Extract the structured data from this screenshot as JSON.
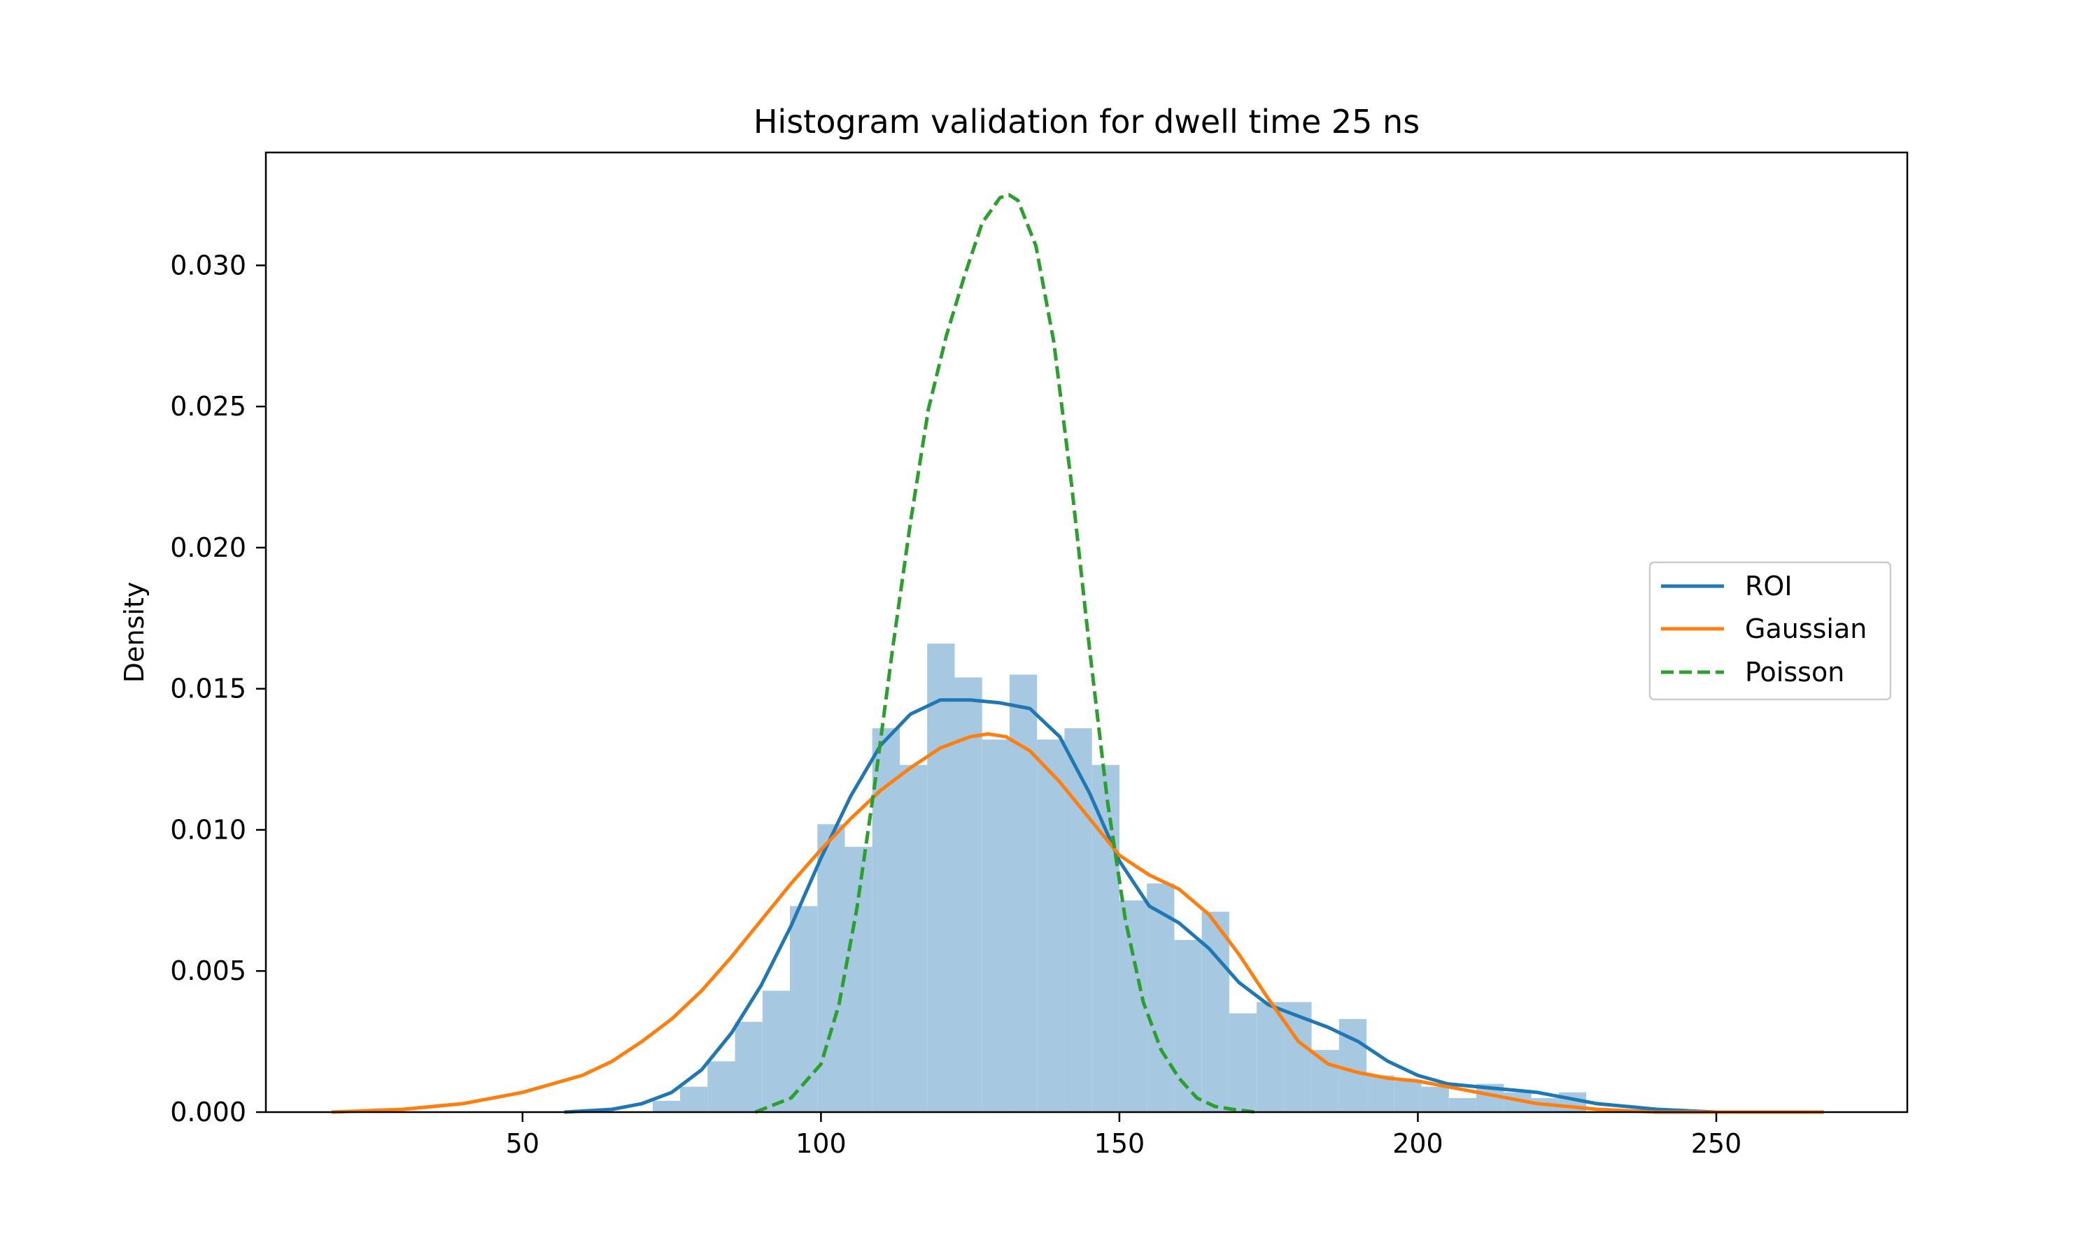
{
  "chart_data": {
    "type": "histogram",
    "title": "Histogram validation for dwell time 25 ns",
    "xlabel": "",
    "ylabel": "Density",
    "xlim": [
      7,
      282
    ],
    "ylim": [
      0,
      0.034
    ],
    "x_ticks": [
      50,
      100,
      150,
      200,
      250
    ],
    "y_ticks": [
      0.0,
      0.005,
      0.01,
      0.015,
      0.02,
      0.025,
      0.03
    ],
    "y_tick_labels": [
      "0.000",
      "0.005",
      "0.010",
      "0.015",
      "0.020",
      "0.025",
      "0.030"
    ],
    "grid": false,
    "legend_position": "center-right",
    "histogram": {
      "color": "#a6c8e0",
      "bin_edges": [
        71.8,
        76.4,
        81.0,
        85.6,
        90.2,
        94.8,
        99.4,
        104.0,
        108.6,
        113.2,
        117.8,
        122.4,
        127.0,
        131.6,
        136.2,
        140.8,
        145.4,
        150.0,
        154.6,
        159.2,
        163.8,
        168.4,
        173.0,
        177.6,
        182.2,
        186.8,
        191.4,
        196.0,
        200.6,
        205.2,
        209.8,
        214.4,
        219.0,
        223.6,
        228.2
      ],
      "densities": [
        0.0004,
        0.0009,
        0.0018,
        0.0032,
        0.0043,
        0.0073,
        0.0102,
        0.0094,
        0.0136,
        0.0123,
        0.0166,
        0.0154,
        0.0132,
        0.0155,
        0.0132,
        0.0136,
        0.0123,
        0.0075,
        0.0081,
        0.0061,
        0.0071,
        0.0035,
        0.0039,
        0.0039,
        0.0022,
        0.0033,
        0.0013,
        0.0011,
        0.0009,
        0.0005,
        0.001,
        0.0007,
        0.0005,
        0.0007
      ]
    },
    "series": [
      {
        "name": "ROI",
        "color": "#1f77b4",
        "style": "solid",
        "x": [
          57,
          65,
          70,
          75,
          80,
          85,
          90,
          95,
          100,
          105,
          110,
          115,
          120,
          125,
          130,
          135,
          140,
          145,
          150,
          155,
          160,
          165,
          170,
          175,
          180,
          185,
          190,
          195,
          200,
          205,
          210,
          215,
          220,
          225,
          230,
          235,
          240,
          250,
          260,
          268
        ],
        "y": [
          0.0,
          0.0001,
          0.0003,
          0.0007,
          0.0015,
          0.0028,
          0.0045,
          0.0066,
          0.009,
          0.0112,
          0.013,
          0.0141,
          0.0146,
          0.0146,
          0.0145,
          0.0143,
          0.0133,
          0.0113,
          0.0089,
          0.0073,
          0.0067,
          0.0058,
          0.0046,
          0.0038,
          0.0034,
          0.003,
          0.0025,
          0.0018,
          0.0013,
          0.001,
          0.0009,
          0.0008,
          0.0007,
          0.0005,
          0.0003,
          0.0002,
          0.0001,
          0.0,
          0.0,
          0.0
        ]
      },
      {
        "name": "Gaussian",
        "color": "#ff7f0e",
        "style": "solid",
        "x": [
          18,
          30,
          40,
          50,
          60,
          65,
          70,
          75,
          80,
          85,
          90,
          95,
          100,
          105,
          110,
          115,
          120,
          125,
          128,
          131,
          135,
          140,
          145,
          150,
          155,
          160,
          165,
          170,
          175,
          180,
          185,
          190,
          195,
          200,
          205,
          210,
          215,
          220,
          225,
          230,
          240,
          250,
          268
        ],
        "y": [
          0.0,
          0.0001,
          0.0003,
          0.0007,
          0.0013,
          0.0018,
          0.0025,
          0.0033,
          0.0043,
          0.0055,
          0.0068,
          0.0081,
          0.0093,
          0.0104,
          0.0114,
          0.0122,
          0.0129,
          0.0133,
          0.0134,
          0.0133,
          0.0128,
          0.0117,
          0.0104,
          0.0091,
          0.0084,
          0.0079,
          0.007,
          0.0056,
          0.004,
          0.0025,
          0.0017,
          0.0014,
          0.0012,
          0.0011,
          0.0009,
          0.0007,
          0.0005,
          0.0003,
          0.0002,
          0.0001,
          0.0,
          0.0,
          0.0
        ]
      },
      {
        "name": "Poisson",
        "color": "#2ca02c",
        "style": "dashed",
        "x": [
          89,
          95,
          100,
          103,
          106,
          109,
          112,
          115,
          118,
          121,
          124,
          127,
          130,
          131.5,
          133,
          136,
          139,
          142,
          145,
          148,
          151,
          154,
          157,
          160,
          163,
          166,
          169,
          173
        ],
        "y": [
          0.0,
          0.0005,
          0.0017,
          0.0038,
          0.0072,
          0.0116,
          0.0164,
          0.0209,
          0.0249,
          0.0275,
          0.0296,
          0.0315,
          0.0324,
          0.0325,
          0.0323,
          0.0307,
          0.0273,
          0.0222,
          0.0164,
          0.011,
          0.0068,
          0.0039,
          0.0022,
          0.0012,
          0.0005,
          0.0002,
          0.0001,
          0.0
        ]
      }
    ]
  }
}
